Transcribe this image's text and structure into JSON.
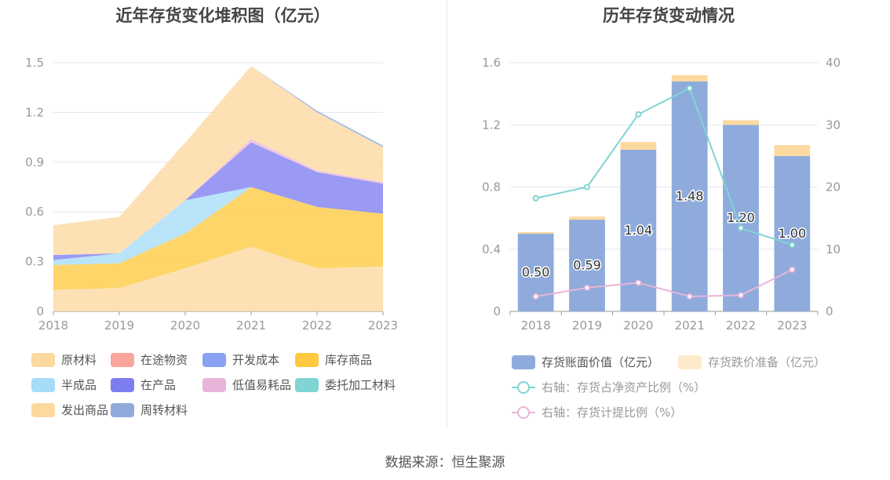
{
  "source": "数据来源：恒生聚源",
  "chart_data": [
    {
      "type": "area",
      "stacked": true,
      "title": "近年存货变化堆积图（亿元）",
      "x": [
        "2018",
        "2019",
        "2020",
        "2021",
        "2022",
        "2023"
      ],
      "ylim": [
        0,
        1.5
      ],
      "yticks": [
        "0",
        "0.3",
        "0.6",
        "0.9",
        "1.2",
        "1.5"
      ],
      "grid": true,
      "legend_position": "bottom",
      "series": [
        {
          "name": "原材料",
          "color": "#fdd9a0",
          "values": [
            0.13,
            0.14,
            0.26,
            0.39,
            0.26,
            0.27
          ]
        },
        {
          "name": "在途物资",
          "color": "#f9a59a",
          "values": [
            0,
            0,
            0,
            0,
            0,
            0
          ]
        },
        {
          "name": "开发成本",
          "color": "#89a3f4",
          "values": [
            0,
            0,
            0,
            0,
            0,
            0
          ]
        },
        {
          "name": "库存商品",
          "color": "#fec93f",
          "values": [
            0.15,
            0.15,
            0.21,
            0.36,
            0.37,
            0.32
          ]
        },
        {
          "name": "半成品",
          "color": "#a6dcf7",
          "values": [
            0.03,
            0.06,
            0.2,
            0,
            0,
            0
          ]
        },
        {
          "name": "在产品",
          "color": "#7d7df2",
          "values": [
            0.03,
            0,
            0,
            0.27,
            0.21,
            0.18
          ]
        },
        {
          "name": "低值易耗品",
          "color": "#e9b5da",
          "values": [
            0,
            0,
            0,
            0.02,
            0.01,
            0.01
          ]
        },
        {
          "name": "委托加工材料",
          "color": "#80d4d4",
          "values": [
            0,
            0,
            0,
            0,
            0,
            0
          ]
        },
        {
          "name": "发出商品",
          "color": "#fdd9a0",
          "values": [
            0.18,
            0.22,
            0.35,
            0.44,
            0.35,
            0.21
          ]
        },
        {
          "name": "周转材料",
          "color": "#8eabdc",
          "values": [
            0,
            0,
            0,
            0,
            0.01,
            0.01
          ]
        }
      ]
    },
    {
      "type": "bar",
      "stacked": true,
      "title": "历年存货变动情况",
      "x": [
        "2018",
        "2019",
        "2020",
        "2021",
        "2022",
        "2023"
      ],
      "ylim": [
        0,
        1.6
      ],
      "yticks": [
        "0",
        "0.4",
        "0.8",
        "1.2",
        "1.6"
      ],
      "y2lim": [
        0,
        40
      ],
      "y2ticks": [
        "0",
        "10",
        "20",
        "30",
        "40"
      ],
      "grid": true,
      "legend_position": "bottom",
      "series": [
        {
          "name": "存货账面价值（亿元）",
          "type": "bar",
          "color": "#8eabdc",
          "values": [
            0.5,
            0.59,
            1.04,
            1.48,
            1.2,
            1.0
          ],
          "labels": [
            "0.50",
            "0.59",
            "1.04",
            "1.48",
            "1.20",
            "1.00"
          ]
        },
        {
          "name": "存货跌价准备（亿元）",
          "type": "bar",
          "color": "#fdd9a0",
          "values": [
            0.01,
            0.02,
            0.05,
            0.04,
            0.03,
            0.07
          ]
        },
        {
          "name": "右轴：存货占净资产比例（%）",
          "type": "line",
          "axis": "right",
          "color": "#80d4d4",
          "values": [
            18.2,
            20.0,
            31.7,
            35.9,
            13.4,
            10.7
          ]
        },
        {
          "name": "右轴：存货计提比例（%）",
          "type": "line",
          "axis": "right",
          "color": "#e9b5da",
          "values": [
            2.4,
            3.8,
            4.6,
            2.4,
            2.6,
            6.7
          ]
        }
      ]
    }
  ]
}
